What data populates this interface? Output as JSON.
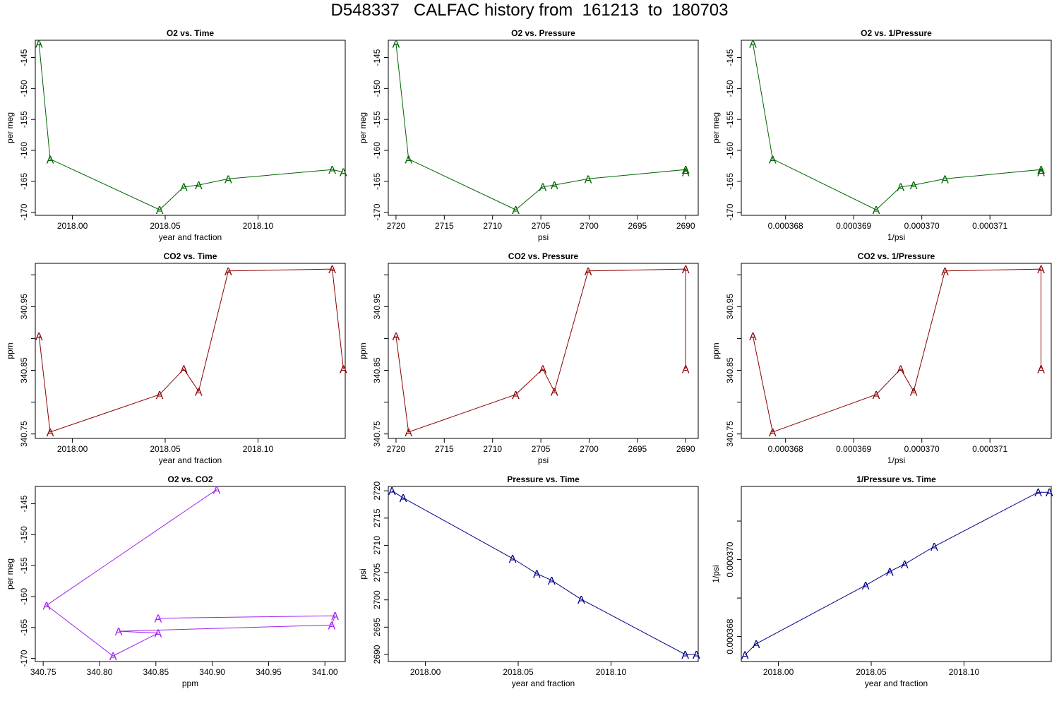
{
  "title": "D548337   CALFAC history from  161213  to  180703",
  "chart_data": [
    {
      "type": "line",
      "title": "O2 vs. Time",
      "xlabel": "year and fraction",
      "ylabel": "per meg",
      "color": "#006400",
      "marker": "A",
      "xlim": [
        1.96,
        2.127
      ],
      "ylim": [
        -170.5,
        -142.2
      ],
      "xticks": [
        1.98,
        2.03,
        2.08
      ],
      "xtick_labels": [
        "2018.00",
        "2018.05",
        "2018.10"
      ],
      "yticks": [
        -145,
        -150,
        -155,
        -160,
        -165,
        -170
      ],
      "ytick_labels": [
        "-145",
        "-150",
        "-155",
        "-160",
        "-165",
        "-170"
      ],
      "series": [
        {
          "x": [
            1.962,
            1.968,
            2.027,
            2.04,
            2.048,
            2.064,
            2.12,
            2.126
          ],
          "y": [
            -142.7,
            -161.4,
            -169.6,
            -165.9,
            -165.6,
            -164.6,
            -163.1,
            -163.5
          ]
        }
      ]
    },
    {
      "type": "line",
      "title": "O2 vs. Pressure",
      "xlabel": "psi",
      "ylabel": "per meg",
      "color": "#006400",
      "marker": "A",
      "xlim": [
        2720.8,
        2688.7
      ],
      "ylim": [
        -170.5,
        -142.2
      ],
      "xticks": [
        2720,
        2715,
        2710,
        2705,
        2700,
        2695,
        2690
      ],
      "xtick_labels": [
        "2720",
        "2715",
        "2710",
        "2705",
        "2700",
        "2695",
        "2690"
      ],
      "yticks": [
        -145,
        -150,
        -155,
        -160,
        -165,
        -170
      ],
      "ytick_labels": [
        "-145",
        "-150",
        "-155",
        "-160",
        "-165",
        "-170"
      ],
      "series": [
        {
          "x": [
            2720,
            2718.7,
            2707.6,
            2704.8,
            2703.6,
            2700.1,
            2690,
            2690
          ],
          "y": [
            -142.7,
            -161.4,
            -169.6,
            -165.9,
            -165.6,
            -164.6,
            -163.1,
            -163.5
          ]
        }
      ]
    },
    {
      "type": "line",
      "title": "O2 vs. 1/Pressure",
      "xlabel": "1/psi",
      "ylabel": "per meg",
      "color": "#006400",
      "marker": "A",
      "xlim": [
        0.00036735,
        0.0003719
      ],
      "ylim": [
        -170.5,
        -142.2
      ],
      "xticks": [
        0.000368,
        0.000369,
        0.00037,
        0.000371
      ],
      "xtick_labels": [
        "0.000368",
        "0.000369",
        "0.000370",
        "0.000371"
      ],
      "yticks": [
        -145,
        -150,
        -155,
        -160,
        -165,
        -170
      ],
      "ytick_labels": [
        "-145",
        "-150",
        "-155",
        "-160",
        "-165",
        "-170"
      ],
      "series": [
        {
          "x": [
            0.00036752,
            0.00036781,
            0.00036933,
            0.00036969,
            0.00036988,
            0.00037034,
            0.00037175,
            0.00037175
          ],
          "y": [
            -142.7,
            -161.4,
            -169.6,
            -165.9,
            -165.6,
            -164.6,
            -163.1,
            -163.5
          ]
        }
      ]
    },
    {
      "type": "line",
      "title": "CO2 vs. Time",
      "xlabel": "year and fraction",
      "ylabel": "ppm",
      "color": "#8b0000",
      "marker": "A",
      "xlim": [
        1.96,
        2.127
      ],
      "ylim": [
        340.743,
        341.018
      ],
      "xticks": [
        1.98,
        2.03,
        2.08
      ],
      "xtick_labels": [
        "2018.00",
        "2018.05",
        "2018.10"
      ],
      "yticks": [
        340.75,
        340.8,
        340.85,
        340.9,
        340.95,
        341.0
      ],
      "ytick_labels": [
        "340.75",
        "",
        "340.85",
        "",
        "340.95",
        ""
      ],
      "series": [
        {
          "x": [
            1.962,
            1.968,
            2.027,
            2.04,
            2.048,
            2.064,
            2.12,
            2.126
          ],
          "y": [
            340.904,
            340.753,
            340.812,
            340.852,
            340.817,
            341.006,
            341.009,
            340.852
          ]
        }
      ]
    },
    {
      "type": "line",
      "title": "CO2 vs. Pressure",
      "xlabel": "psi",
      "ylabel": "ppm",
      "color": "#8b0000",
      "marker": "A",
      "xlim": [
        2720.8,
        2688.7
      ],
      "ylim": [
        340.743,
        341.018
      ],
      "xticks": [
        2720,
        2715,
        2710,
        2705,
        2700,
        2695,
        2690
      ],
      "xtick_labels": [
        "2720",
        "2715",
        "2710",
        "2705",
        "2700",
        "2695",
        "2690"
      ],
      "yticks": [
        340.75,
        340.8,
        340.85,
        340.9,
        340.95,
        341.0
      ],
      "ytick_labels": [
        "340.75",
        "",
        "340.85",
        "",
        "340.95",
        ""
      ],
      "series": [
        {
          "x": [
            2720,
            2718.7,
            2707.6,
            2704.8,
            2703.6,
            2700.1,
            2690,
            2690
          ],
          "y": [
            340.904,
            340.753,
            340.812,
            340.852,
            340.817,
            341.006,
            341.009,
            340.852
          ]
        }
      ]
    },
    {
      "type": "line",
      "title": "CO2 vs. 1/Pressure",
      "xlabel": "1/psi",
      "ylabel": "ppm",
      "color": "#8b0000",
      "marker": "A",
      "xlim": [
        0.00036735,
        0.0003719
      ],
      "ylim": [
        340.743,
        341.018
      ],
      "xticks": [
        0.000368,
        0.000369,
        0.00037,
        0.000371
      ],
      "xtick_labels": [
        "0.000368",
        "0.000369",
        "0.000370",
        "0.000371"
      ],
      "yticks": [
        340.75,
        340.8,
        340.85,
        340.9,
        340.95,
        341.0
      ],
      "ytick_labels": [
        "340.75",
        "",
        "340.85",
        "",
        "340.95",
        ""
      ],
      "series": [
        {
          "x": [
            0.00036752,
            0.00036781,
            0.00036933,
            0.00036969,
            0.00036988,
            0.00037034,
            0.00037175,
            0.00037175
          ],
          "y": [
            340.904,
            340.753,
            340.812,
            340.852,
            340.817,
            341.006,
            341.009,
            340.852
          ]
        }
      ]
    },
    {
      "type": "line",
      "title": "O2 vs. CO2",
      "xlabel": "ppm",
      "ylabel": "per meg",
      "color": "#a020f0",
      "marker": "A",
      "xlim": [
        340.743,
        341.018
      ],
      "ylim": [
        -170.5,
        -142.2
      ],
      "xticks": [
        340.75,
        340.8,
        340.85,
        340.9,
        340.95,
        341.0
      ],
      "xtick_labels": [
        "340.75",
        "340.80",
        "340.85",
        "340.90",
        "340.95",
        "341.00"
      ],
      "yticks": [
        -145,
        -150,
        -155,
        -160,
        -165,
        -170
      ],
      "ytick_labels": [
        "-145",
        "-150",
        "-155",
        "-160",
        "-165",
        "-170"
      ],
      "series": [
        {
          "x": [
            340.904,
            340.753,
            340.812,
            340.852,
            340.817,
            341.006,
            341.009,
            340.852
          ],
          "y": [
            -142.7,
            -161.4,
            -169.6,
            -165.9,
            -165.6,
            -164.6,
            -163.1,
            -163.5
          ]
        }
      ]
    },
    {
      "type": "line",
      "title": "Pressure vs. Time",
      "xlabel": "year and fraction",
      "ylabel": "psi",
      "color": "#00008b",
      "marker": "A",
      "xlim": [
        1.96,
        2.127
      ],
      "ylim": [
        2688.7,
        2720.8
      ],
      "xticks": [
        1.98,
        2.03,
        2.08
      ],
      "xtick_labels": [
        "2018.00",
        "2018.05",
        "2018.10"
      ],
      "yticks": [
        2690,
        2695,
        2700,
        2705,
        2710,
        2715,
        2720
      ],
      "ytick_labels": [
        "2690",
        "2695",
        "2700",
        "2705",
        "2710",
        "2715",
        "2720"
      ],
      "series": [
        {
          "x": [
            1.962,
            1.968,
            2.027,
            2.04,
            2.048,
            2.064,
            2.12,
            2.126
          ],
          "y": [
            2720,
            2718.7,
            2707.6,
            2704.8,
            2703.6,
            2700.1,
            2690,
            2690
          ]
        }
      ]
    },
    {
      "type": "line",
      "title": "1/Pressure vs. Time",
      "xlabel": "year and fraction",
      "ylabel": "1/psi",
      "color": "#00008b",
      "marker": "A",
      "xlim": [
        1.96,
        2.127
      ],
      "ylim": [
        0.00036735,
        0.0003719
      ],
      "xticks": [
        1.98,
        2.03,
        2.08
      ],
      "xtick_labels": [
        "2018.00",
        "2018.05",
        "2018.10"
      ],
      "yticks": [
        0.000368,
        0.000369,
        0.00037,
        0.000371
      ],
      "ytick_labels": [
        "0.000368",
        "",
        "0.000370",
        ""
      ],
      "series": [
        {
          "x": [
            1.962,
            1.968,
            2.027,
            2.04,
            2.048,
            2.064,
            2.12,
            2.126
          ],
          "y": [
            0.00036752,
            0.00036781,
            0.00036933,
            0.00036969,
            0.00036988,
            0.00037034,
            0.00037175,
            0.00037175
          ]
        }
      ]
    }
  ]
}
